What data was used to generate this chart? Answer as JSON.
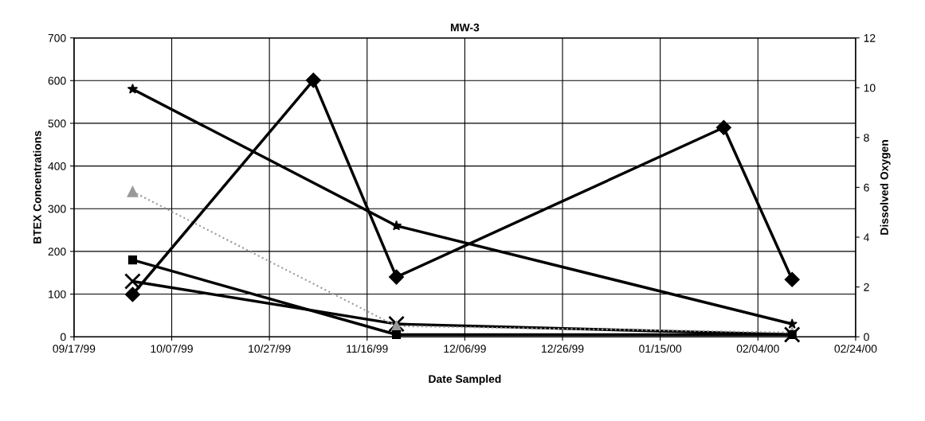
{
  "chart_data": {
    "type": "line",
    "title": "MW-3",
    "xlabel": "Date Sampled",
    "ylabel": "BTEX Concentrations",
    "y2label": "Dissolved Oxygen",
    "xlim": [
      "1999-09-17",
      "2000-02-24"
    ],
    "xticks": [
      {
        "value": "1999-09-17",
        "label": "09/17/99"
      },
      {
        "value": "1999-10-07",
        "label": "10/07/99"
      },
      {
        "value": "1999-10-27",
        "label": "10/27/99"
      },
      {
        "value": "1999-11-16",
        "label": "11/16/99"
      },
      {
        "value": "1999-12-06",
        "label": "12/06/99"
      },
      {
        "value": "1999-12-26",
        "label": "12/26/99"
      },
      {
        "value": "2000-01-15",
        "label": "01/15/00"
      },
      {
        "value": "2000-02-04",
        "label": "02/04/00"
      },
      {
        "value": "2000-02-24",
        "label": "02/24/00"
      }
    ],
    "ylim": [
      0,
      700
    ],
    "yticks": [
      0,
      100,
      200,
      300,
      400,
      500,
      600,
      700
    ],
    "y2lim": [
      0,
      12
    ],
    "y2ticks": [
      0,
      2,
      4,
      6,
      8,
      10,
      12
    ],
    "grid": true,
    "series": [
      {
        "color": "#000000",
        "marker": "diamond",
        "line_style": "solid",
        "axis": "y2",
        "x": [
          "1999-09-29",
          "1999-11-05",
          "1999-11-22",
          "2000-01-28",
          "2000-02-11"
        ],
        "values": [
          1.7,
          10.3,
          2.4,
          8.4,
          2.3
        ]
      },
      {
        "color": "#000000",
        "marker": "star",
        "line_style": "solid",
        "x": [
          "1999-09-29",
          "1999-11-22",
          "2000-02-11"
        ],
        "values": [
          580,
          260,
          30
        ]
      },
      {
        "color": "#000000",
        "marker": "square",
        "line_style": "solid",
        "x": [
          "1999-09-29",
          "1999-11-22",
          "2000-02-11"
        ],
        "values": [
          180,
          5,
          5
        ]
      },
      {
        "color": "#000000",
        "marker": "cross",
        "line_style": "solid",
        "x": [
          "1999-09-29",
          "1999-11-22",
          "2000-02-11"
        ],
        "values": [
          130,
          30,
          5
        ]
      },
      {
        "color": "#999999",
        "marker": "triangle",
        "line_style": "dotted",
        "x": [
          "1999-09-29",
          "1999-11-22",
          "2000-02-11"
        ],
        "values": [
          340,
          25,
          10
        ]
      }
    ]
  }
}
